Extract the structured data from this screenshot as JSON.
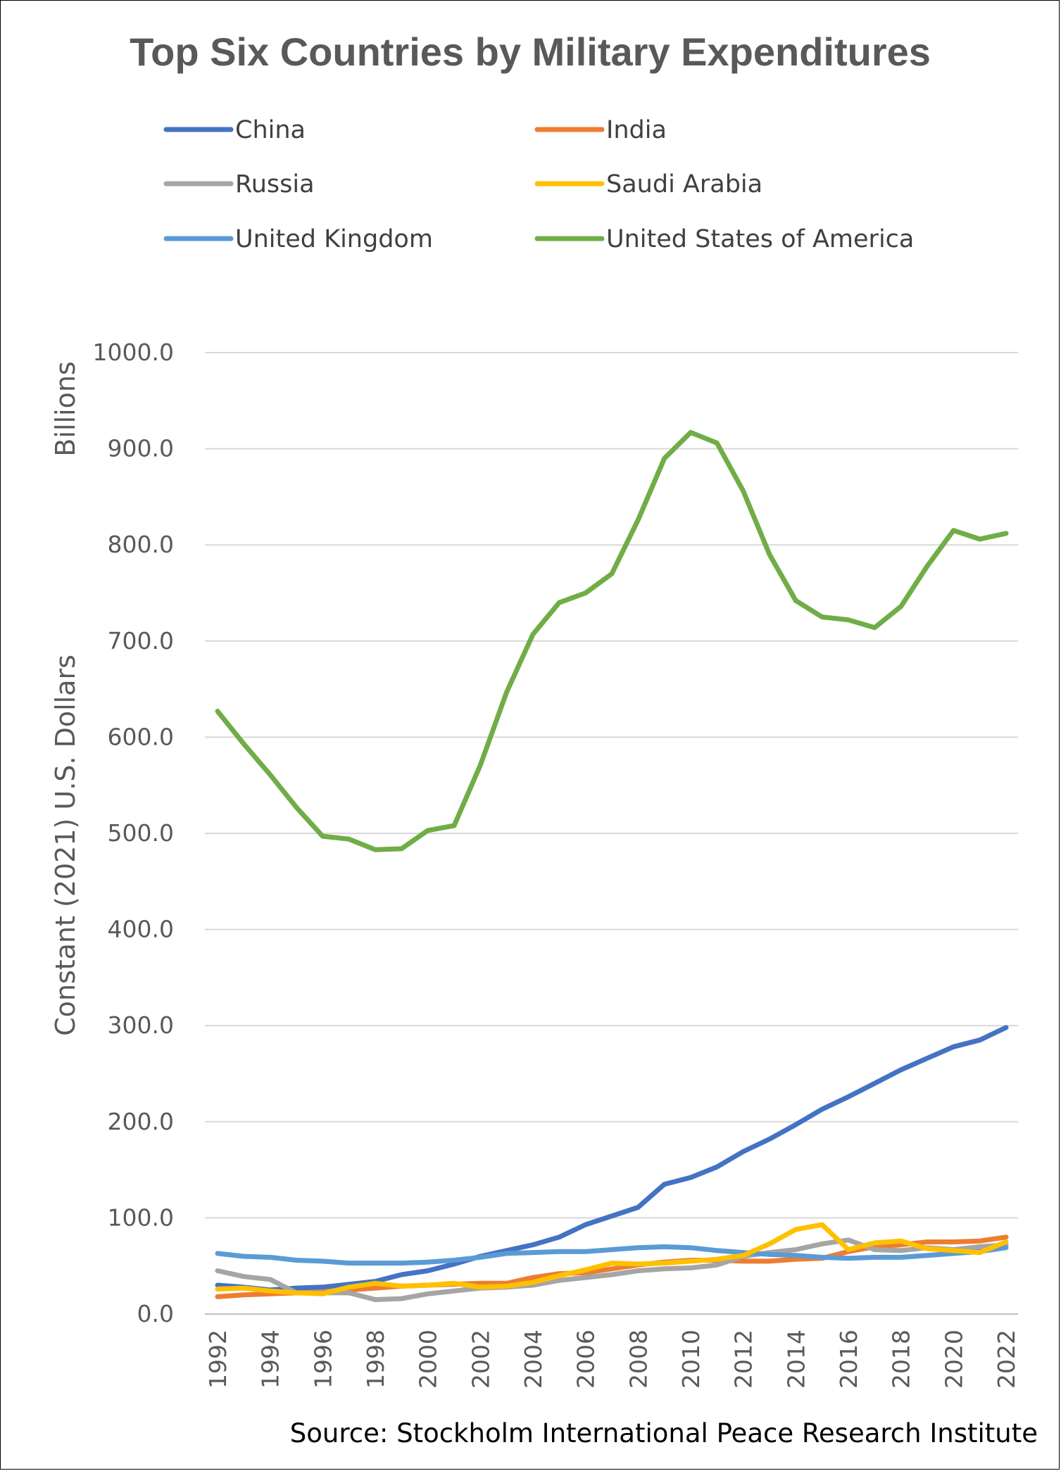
{
  "chart_data": {
    "type": "line",
    "title": "Top Six Countries by Military Expenditures",
    "ylabel_top": "Billions",
    "ylabel": "Constant (2021) U.S. Dollars",
    "source": "Source: Stockholm International Peace  Research Institute",
    "ylim": [
      0,
      1000
    ],
    "y_ticks": [
      "0.0",
      "100.0",
      "200.0",
      "300.0",
      "400.0",
      "500.0",
      "600.0",
      "700.0",
      "800.0",
      "900.0",
      "1000.0"
    ],
    "x_tick_labels": [
      "1992",
      "1994",
      "1996",
      "1998",
      "2000",
      "2002",
      "2004",
      "2006",
      "2008",
      "2010",
      "2012",
      "2014",
      "2016",
      "2018",
      "2020",
      "2022"
    ],
    "grid": true,
    "legend_position": "top",
    "x": [
      1992,
      1993,
      1994,
      1995,
      1996,
      1997,
      1998,
      1999,
      2000,
      2001,
      2002,
      2003,
      2004,
      2005,
      2006,
      2007,
      2008,
      2009,
      2010,
      2011,
      2012,
      2013,
      2014,
      2015,
      2016,
      2017,
      2018,
      2019,
      2020,
      2021,
      2022
    ],
    "series": [
      {
        "name": "China",
        "color": "#4472C4",
        "values": [
          30,
          28,
          25,
          27,
          28,
          31,
          34,
          41,
          45,
          52,
          60,
          66,
          72,
          80,
          93,
          102,
          111,
          135,
          142,
          153,
          169,
          182,
          197,
          213,
          226,
          240,
          254,
          266,
          278,
          285,
          298
        ]
      },
      {
        "name": "India",
        "color": "#ED7D31",
        "values": [
          18,
          20,
          21,
          22,
          23,
          25,
          27,
          29,
          30,
          31,
          32,
          32,
          38,
          42,
          43,
          47,
          51,
          54,
          56,
          56,
          55,
          55,
          57,
          58,
          65,
          70,
          72,
          75,
          75,
          76,
          80
        ]
      },
      {
        "name": "Russia",
        "color": "#A5A5A5",
        "values": [
          45,
          39,
          36,
          22,
          22,
          22,
          15,
          16,
          21,
          24,
          27,
          28,
          30,
          35,
          38,
          41,
          45,
          47,
          48,
          51,
          60,
          64,
          67,
          73,
          77,
          67,
          66,
          69,
          67,
          70,
          72
        ]
      },
      {
        "name": "Saudi Arabia",
        "color": "#FFC000",
        "values": [
          26,
          27,
          24,
          22,
          21,
          28,
          32,
          29,
          30,
          32,
          28,
          29,
          33,
          40,
          46,
          53,
          52,
          53,
          55,
          57,
          61,
          73,
          88,
          93,
          67,
          74,
          76,
          68,
          66,
          64,
          75
        ]
      },
      {
        "name": "United Kingdom",
        "color": "#5B9BD5",
        "values": [
          63,
          60,
          59,
          56,
          55,
          53,
          53,
          53,
          54,
          56,
          59,
          63,
          64,
          65,
          65,
          67,
          69,
          70,
          69,
          66,
          64,
          62,
          61,
          59,
          58,
          59,
          59,
          61,
          63,
          65,
          69
        ]
      },
      {
        "name": "United States of America",
        "color": "#70AD47",
        "values": [
          627,
          593,
          561,
          527,
          497,
          494,
          483,
          484,
          503,
          508,
          571,
          647,
          707,
          740,
          750,
          770,
          826,
          890,
          917,
          906,
          856,
          790,
          742,
          725,
          722,
          714,
          736,
          778,
          815,
          806,
          812
        ]
      }
    ]
  }
}
